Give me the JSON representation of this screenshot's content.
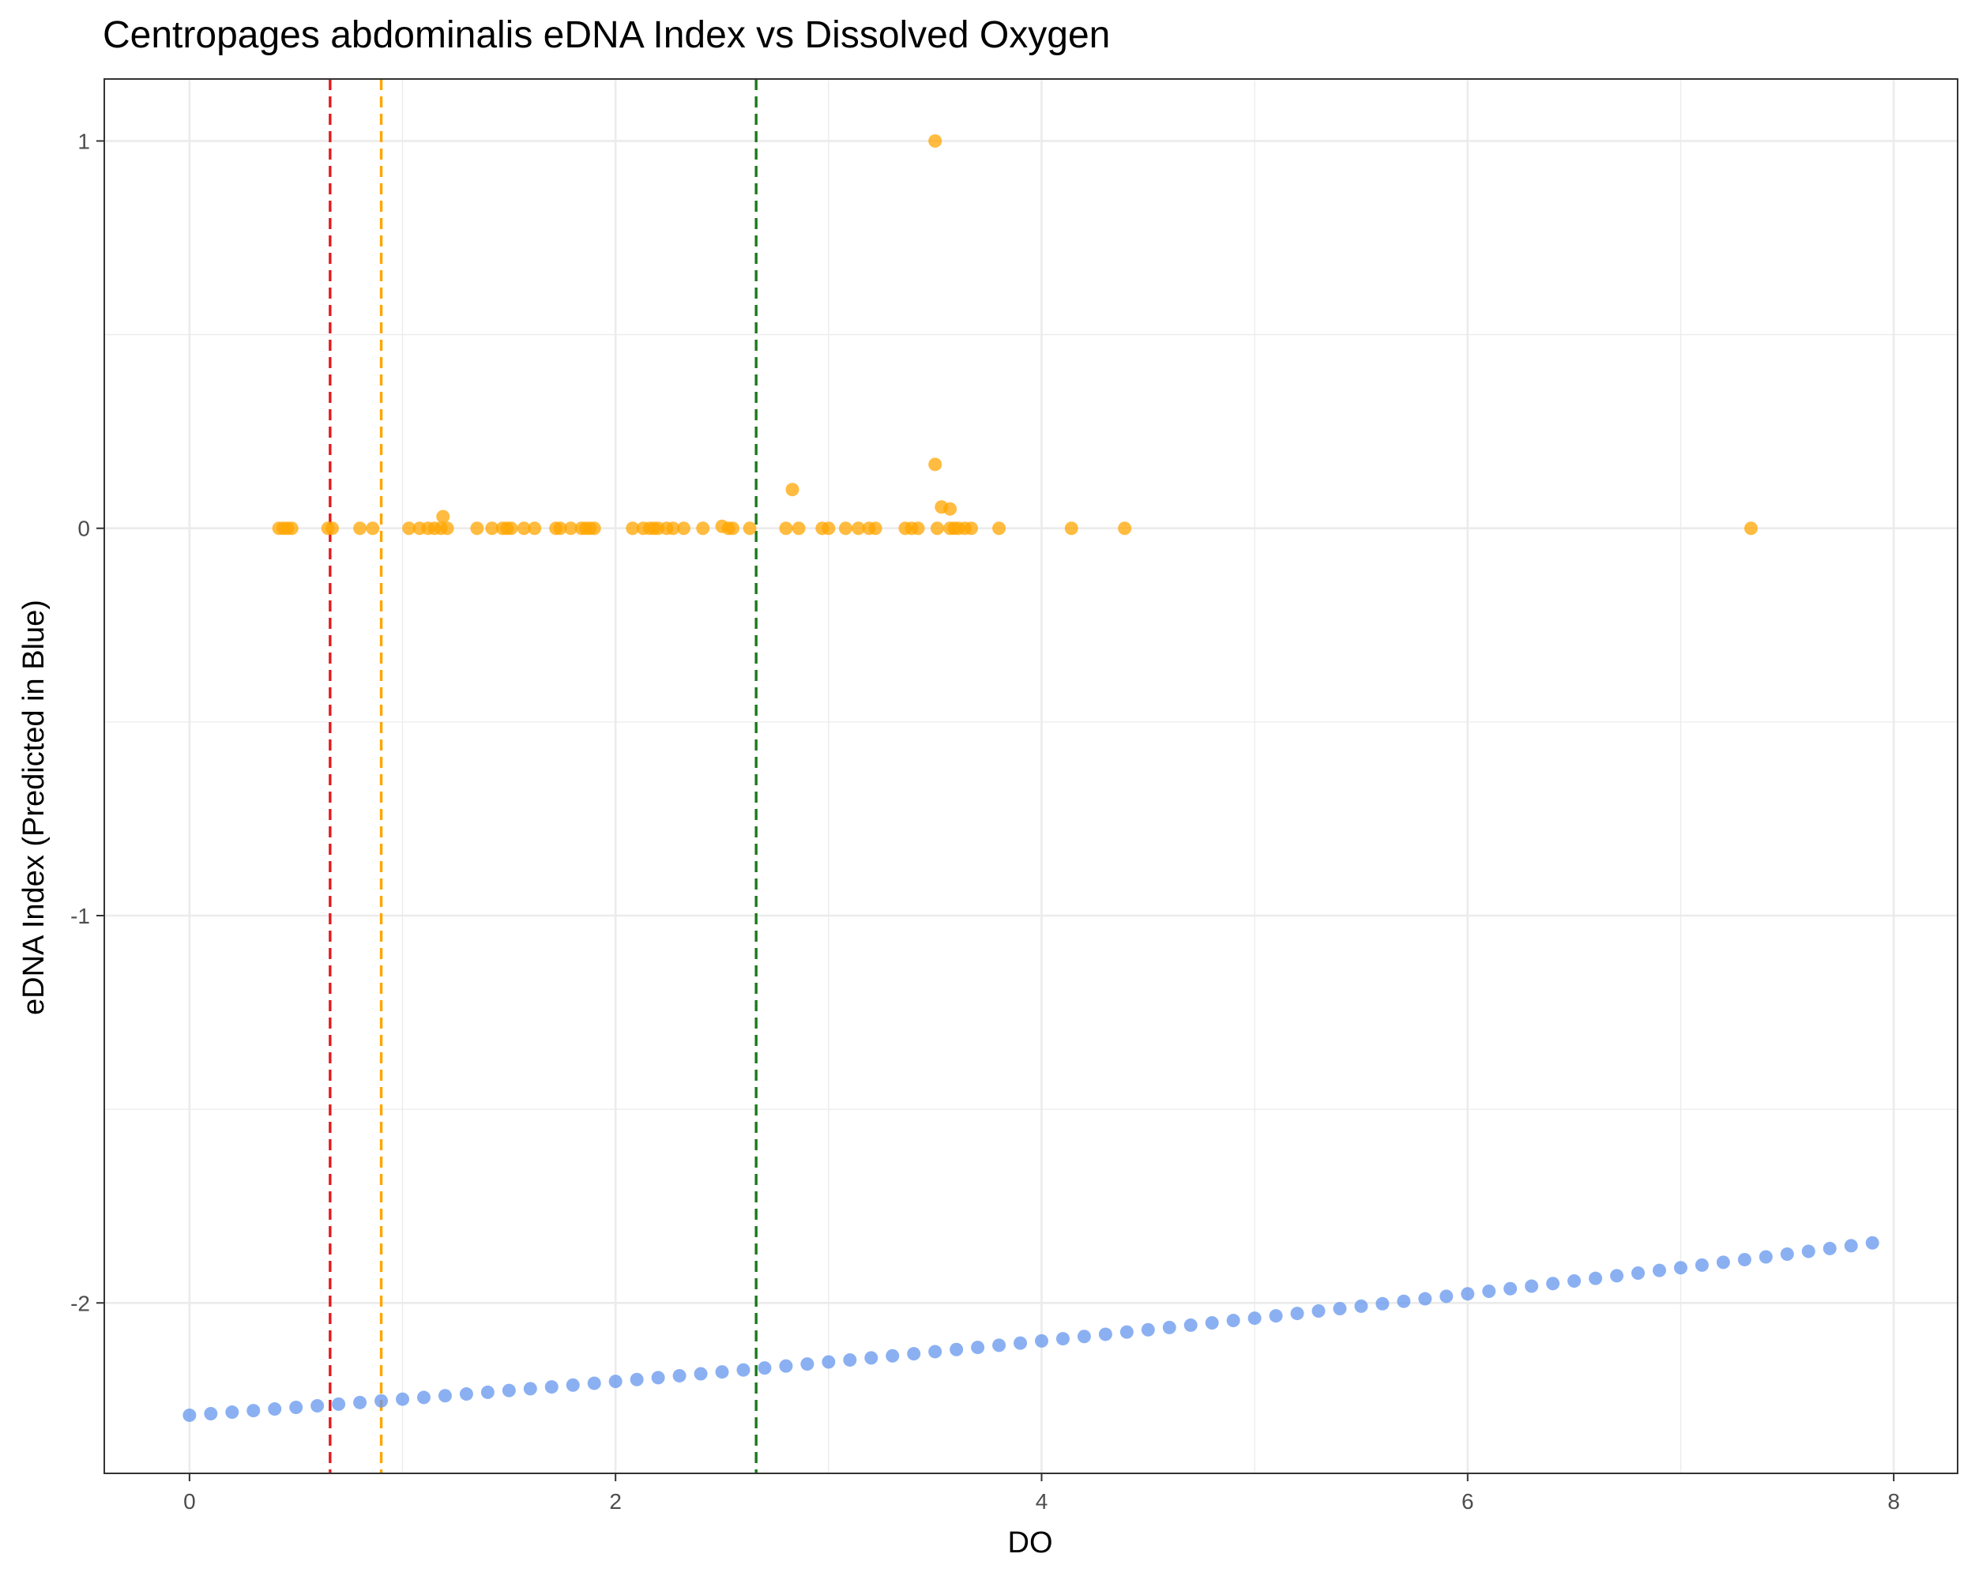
{
  "chart_data": {
    "type": "scatter",
    "title": "Centropages abdominalis eDNA Index vs Dissolved Oxygen",
    "xlabel": "DO",
    "ylabel": "eDNA Index (Predicted in Blue)",
    "xlim": [
      -0.4,
      8.3
    ],
    "ylim": [
      -2.44,
      1.16
    ],
    "x_ticks": [
      0,
      2,
      4,
      6,
      8
    ],
    "y_ticks": [
      1,
      0,
      -1,
      -2
    ],
    "x_tick_labels": [
      "0",
      "2",
      "4",
      "6",
      "8"
    ],
    "y_tick_labels": [
      "1",
      "0",
      "-1",
      "-2"
    ],
    "grid": true,
    "vlines": [
      {
        "x": 0.66,
        "color": "#e41a1c",
        "style": "dashed"
      },
      {
        "x": 0.9,
        "color": "#ffa500",
        "style": "dashed"
      },
      {
        "x": 2.66,
        "color": "#1a7a1a",
        "style": "dashed"
      }
    ],
    "series": [
      {
        "color": "#ffa500",
        "points": [
          [
            0.42,
            0
          ],
          [
            0.44,
            0
          ],
          [
            0.46,
            0
          ],
          [
            0.48,
            0
          ],
          [
            0.65,
            0
          ],
          [
            0.67,
            0
          ],
          [
            0.8,
            0
          ],
          [
            0.86,
            0
          ],
          [
            1.03,
            0
          ],
          [
            1.08,
            0
          ],
          [
            1.12,
            0
          ],
          [
            1.15,
            0
          ],
          [
            1.18,
            0
          ],
          [
            1.19,
            0.03
          ],
          [
            1.21,
            0
          ],
          [
            1.35,
            0
          ],
          [
            1.42,
            0
          ],
          [
            1.47,
            0
          ],
          [
            1.49,
            0
          ],
          [
            1.51,
            0
          ],
          [
            1.57,
            0
          ],
          [
            1.62,
            0
          ],
          [
            1.72,
            0
          ],
          [
            1.74,
            0
          ],
          [
            1.79,
            0
          ],
          [
            1.84,
            0
          ],
          [
            1.86,
            0
          ],
          [
            1.88,
            0
          ],
          [
            1.9,
            0
          ],
          [
            2.08,
            0
          ],
          [
            2.13,
            0
          ],
          [
            2.16,
            0
          ],
          [
            2.18,
            0
          ],
          [
            2.2,
            0
          ],
          [
            2.24,
            0
          ],
          [
            2.27,
            0
          ],
          [
            2.32,
            0
          ],
          [
            2.41,
            0
          ],
          [
            2.5,
            0.005
          ],
          [
            2.53,
            0
          ],
          [
            2.55,
            0
          ],
          [
            2.63,
            0
          ],
          [
            2.8,
            0
          ],
          [
            2.83,
            0.1
          ],
          [
            2.86,
            0
          ],
          [
            2.97,
            0
          ],
          [
            3.0,
            0
          ],
          [
            3.08,
            0
          ],
          [
            3.14,
            0
          ],
          [
            3.19,
            0
          ],
          [
            3.22,
            0
          ],
          [
            3.36,
            0
          ],
          [
            3.39,
            0
          ],
          [
            3.42,
            0
          ],
          [
            3.5,
            1.0
          ],
          [
            3.5,
            0.165
          ],
          [
            3.51,
            0
          ],
          [
            3.53,
            0.055
          ],
          [
            3.57,
            0.05
          ],
          [
            3.57,
            0
          ],
          [
            3.59,
            0
          ],
          [
            3.61,
            0
          ],
          [
            3.64,
            0
          ],
          [
            3.67,
            0
          ],
          [
            3.8,
            0
          ],
          [
            4.14,
            0
          ],
          [
            4.39,
            0
          ],
          [
            7.33,
            0
          ]
        ]
      },
      {
        "color": "#6495ed",
        "name": "Predicted",
        "x_start": 0,
        "x_step": 0.1,
        "x_end": 7.9,
        "y_start": -2.29,
        "y_end": -1.845,
        "curvature": -0.3
      }
    ]
  }
}
